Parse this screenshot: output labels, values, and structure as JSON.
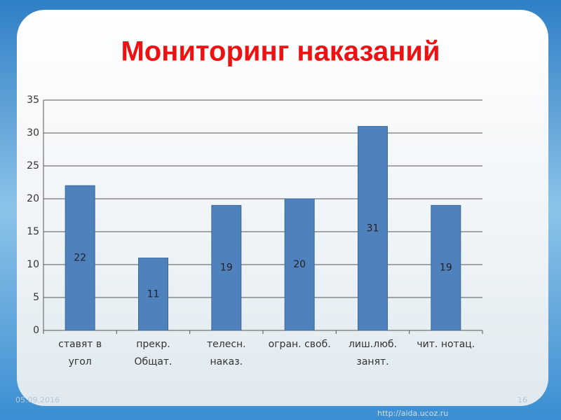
{
  "chart_data": {
    "type": "bar",
    "title": "Мониторинг наказаний",
    "categories": [
      "ставят в\nугол",
      "прекр.\nОбщат.",
      "телесн.\nнаказ.",
      "огран. своб.",
      "лиш.люб.\nзанят.",
      "чит. нотац."
    ],
    "values": [
      22,
      11,
      19,
      20,
      31,
      19
    ],
    "color": "#4f81bd",
    "ylim": [
      0,
      35
    ],
    "yticks": [
      0,
      5,
      10,
      15,
      20,
      25,
      30,
      35
    ],
    "grid": true
  },
  "slide": {
    "date": "05.09.2016",
    "url": "http://aida.ucoz.ru",
    "page": "16"
  }
}
